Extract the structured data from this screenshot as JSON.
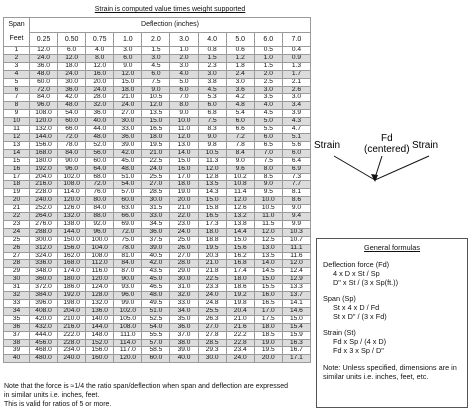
{
  "table": {
    "title": "Strain is computed value times weight supported",
    "deflection_label": "Deflection (inches)",
    "span_label_line1": "Span",
    "span_label_line2": "Feet",
    "columns": [
      "0.25",
      "0.50",
      "0.75",
      "1.0",
      "2.0",
      "3.0",
      "4.0",
      "5.0",
      "6.0",
      "7.0"
    ],
    "rows": [
      [
        "1",
        "12.0",
        "6.0",
        "4.0",
        "3.0",
        "1.5",
        "1.0",
        "0.8",
        "0.6",
        "0.5",
        "0.4"
      ],
      [
        "2",
        "24.0",
        "12.0",
        "8.0",
        "6.0",
        "3.0",
        "2.0",
        "1.5",
        "1.2",
        "1.0",
        "0.9"
      ],
      [
        "3",
        "36.0",
        "18.0",
        "12.0",
        "9.0",
        "4.5",
        "3.0",
        "2.3",
        "1.8",
        "1.5",
        "1.3"
      ],
      [
        "4",
        "48.0",
        "24.0",
        "16.0",
        "12.0",
        "6.0",
        "4.0",
        "3.0",
        "2.4",
        "2.0",
        "1.7"
      ],
      [
        "5",
        "60.0",
        "30.0",
        "20.0",
        "15.0",
        "7.5",
        "5.0",
        "3.8",
        "3.0",
        "2.5",
        "2.1"
      ],
      [
        "6",
        "72.0",
        "36.0",
        "24.0",
        "18.0",
        "9.0",
        "6.0",
        "4.5",
        "3.6",
        "3.0",
        "2.6"
      ],
      [
        "7",
        "84.0",
        "42.0",
        "28.0",
        "21.0",
        "10.5",
        "7.0",
        "5.3",
        "4.2",
        "3.5",
        "3.0"
      ],
      [
        "8",
        "96.0",
        "48.0",
        "32.0",
        "24.0",
        "12.0",
        "8.0",
        "6.0",
        "4.8",
        "4.0",
        "3.4"
      ],
      [
        "9",
        "108.0",
        "54.0",
        "36.0",
        "27.0",
        "13.5",
        "9.0",
        "6.8",
        "5.4",
        "4.5",
        "3.9"
      ],
      [
        "10",
        "120.0",
        "60.0",
        "40.0",
        "30.0",
        "15.0",
        "10.0",
        "7.5",
        "6.0",
        "5.0",
        "4.3"
      ],
      [
        "11",
        "132.0",
        "66.0",
        "44.0",
        "33.0",
        "16.5",
        "11.0",
        "8.3",
        "6.6",
        "5.5",
        "4.7"
      ],
      [
        "12",
        "144.0",
        "72.0",
        "48.0",
        "36.0",
        "18.0",
        "12.0",
        "9.0",
        "7.2",
        "6.0",
        "5.1"
      ],
      [
        "13",
        "156.0",
        "78.0",
        "52.0",
        "39.0",
        "19.5",
        "13.0",
        "9.8",
        "7.8",
        "6.5",
        "5.6"
      ],
      [
        "14",
        "168.0",
        "84.0",
        "56.0",
        "42.0",
        "21.0",
        "14.0",
        "10.5",
        "8.4",
        "7.0",
        "6.0"
      ],
      [
        "15",
        "180.0",
        "90.0",
        "60.0",
        "45.0",
        "22.5",
        "15.0",
        "11.3",
        "9.0",
        "7.5",
        "6.4"
      ],
      [
        "16",
        "192.0",
        "96.0",
        "64.0",
        "48.0",
        "24.0",
        "16.0",
        "12.0",
        "9.6",
        "8.0",
        "6.9"
      ],
      [
        "17",
        "204.0",
        "102.0",
        "68.0",
        "51.0",
        "25.5",
        "17.0",
        "12.8",
        "10.2",
        "8.5",
        "7.3"
      ],
      [
        "18",
        "216.0",
        "108.0",
        "72.0",
        "54.0",
        "27.0",
        "18.0",
        "13.5",
        "10.8",
        "9.0",
        "7.7"
      ],
      [
        "19",
        "228.0",
        "114.0",
        "76.0",
        "57.0",
        "28.5",
        "19.0",
        "14.3",
        "11.4",
        "9.5",
        "8.1"
      ],
      [
        "20",
        "240.0",
        "120.0",
        "80.0",
        "60.0",
        "30.0",
        "20.0",
        "15.0",
        "12.0",
        "10.0",
        "8.6"
      ],
      [
        "21",
        "252.0",
        "126.0",
        "84.0",
        "63.0",
        "31.5",
        "21.0",
        "15.8",
        "12.6",
        "10.5",
        "9.0"
      ],
      [
        "22",
        "264.0",
        "132.0",
        "88.0",
        "66.0",
        "33.0",
        "22.0",
        "16.5",
        "13.2",
        "11.0",
        "9.4"
      ],
      [
        "23",
        "276.0",
        "138.0",
        "92.0",
        "69.0",
        "34.5",
        "23.0",
        "17.3",
        "13.8",
        "11.5",
        "9.9"
      ],
      [
        "24",
        "288.0",
        "144.0",
        "96.0",
        "72.0",
        "36.0",
        "24.0",
        "18.0",
        "14.4",
        "12.0",
        "10.3"
      ],
      [
        "25",
        "300.0",
        "150.0",
        "100.0",
        "75.0",
        "37.5",
        "25.0",
        "18.8",
        "15.0",
        "12.5",
        "10.7"
      ],
      [
        "26",
        "312.0",
        "156.0",
        "104.0",
        "78.0",
        "39.0",
        "26.0",
        "19.5",
        "15.6",
        "13.0",
        "11.1"
      ],
      [
        "27",
        "324.0",
        "162.0",
        "108.0",
        "81.0",
        "40.5",
        "27.0",
        "20.3",
        "16.2",
        "13.5",
        "11.6"
      ],
      [
        "28",
        "336.0",
        "168.0",
        "112.0",
        "84.0",
        "42.0",
        "28.0",
        "21.0",
        "16.8",
        "14.0",
        "12.0"
      ],
      [
        "29",
        "348.0",
        "174.0",
        "116.0",
        "87.0",
        "43.5",
        "29.0",
        "21.8",
        "17.4",
        "14.5",
        "12.4"
      ],
      [
        "30",
        "360.0",
        "180.0",
        "120.0",
        "90.0",
        "45.0",
        "30.0",
        "22.5",
        "18.0",
        "15.0",
        "12.9"
      ],
      [
        "31",
        "372.0",
        "186.0",
        "124.0",
        "93.0",
        "46.5",
        "31.0",
        "23.3",
        "18.6",
        "15.5",
        "13.3"
      ],
      [
        "32",
        "384.0",
        "192.0",
        "128.0",
        "96.0",
        "48.0",
        "32.0",
        "24.0",
        "19.2",
        "16.0",
        "13.7"
      ],
      [
        "33",
        "396.0",
        "198.0",
        "132.0",
        "99.0",
        "49.5",
        "33.0",
        "24.8",
        "19.8",
        "16.5",
        "14.1"
      ],
      [
        "34",
        "408.0",
        "204.0",
        "136.0",
        "102.0",
        "51.0",
        "34.0",
        "25.5",
        "20.4",
        "17.0",
        "14.6"
      ],
      [
        "35",
        "420.0",
        "210.0",
        "140.0",
        "105.0",
        "52.5",
        "35.0",
        "26.3",
        "21.0",
        "17.5",
        "15.0"
      ],
      [
        "36",
        "432.0",
        "216.0",
        "144.0",
        "108.0",
        "54.0",
        "36.0",
        "27.0",
        "21.6",
        "18.0",
        "15.4"
      ],
      [
        "37",
        "444.0",
        "222.0",
        "148.0",
        "111.0",
        "55.5",
        "37.0",
        "27.8",
        "22.2",
        "18.5",
        "15.9"
      ],
      [
        "38",
        "456.0",
        "228.0",
        "152.0",
        "114.0",
        "57.0",
        "38.0",
        "28.5",
        "22.8",
        "19.0",
        "16.3"
      ],
      [
        "39",
        "468.0",
        "234.0",
        "156.0",
        "117.0",
        "58.5",
        "39.0",
        "29.3",
        "23.4",
        "19.5",
        "16.7"
      ],
      [
        "40",
        "480.0",
        "240.0",
        "160.0",
        "120.0",
        "60.0",
        "40.0",
        "30.0",
        "24.0",
        "20.0",
        "17.1"
      ]
    ]
  },
  "notes": {
    "line1": "Note that the force is ≈1/4 the ratio span/deflection when span and deflection are expressed",
    "line2": "in similar units i.e. inches, feet.",
    "line3": "This is valid for ratios of 5 or more."
  },
  "diagram": {
    "left_label": "Strain",
    "right_label": "Strain",
    "center_label_line1": "Fd",
    "center_label_line2": "(centered)"
  },
  "formulas": {
    "title": "General formulas",
    "deflection_head": "Deflection force (Fd)",
    "deflection_line1": "4 x D x St / Sp",
    "deflection_line2": "D\" x St / (3 x Sp(ft.))",
    "span_head": "Span (Sp)",
    "span_line1": "St x 4 x D / Fd",
    "span_line2": "St x D\" / (3 x Fd)",
    "strain_head": "Strain (St)",
    "strain_line1": "Fd x Sp / (4 x D)",
    "strain_line2": "Fd x 3 x Sp / D\"",
    "note_line1": "Note: Unless specified, dimensions are in",
    "note_line2": "similar units i.e. inches, feet, etc."
  }
}
